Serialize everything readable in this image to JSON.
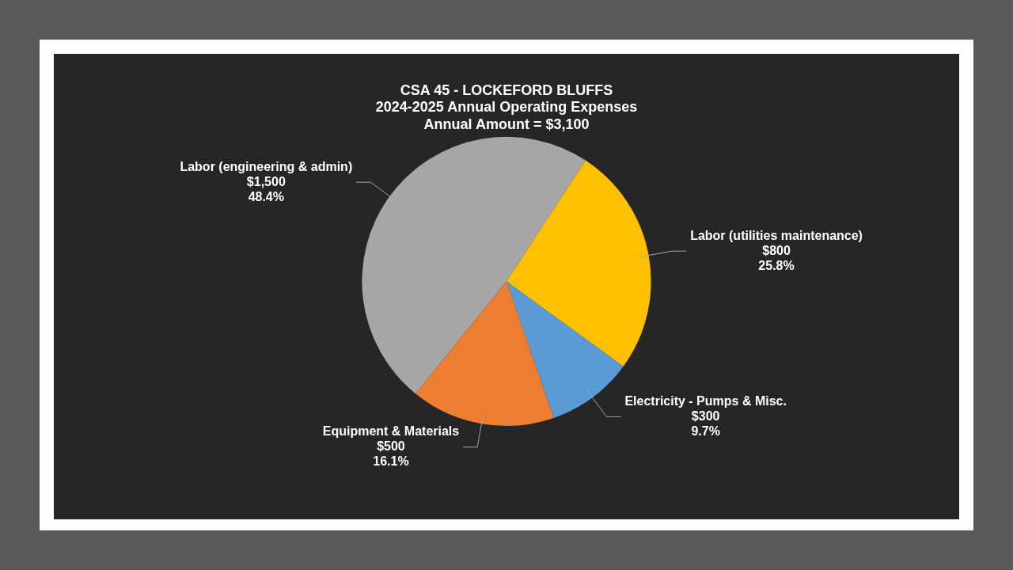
{
  "chart_data": {
    "type": "pie",
    "title": "CSA 45 - LOCKEFORD BLUFFS\n2024-2025 Annual Operating Expenses\nAnnual Amount = $3,100",
    "categories": [
      "Labor (engineering & admin)",
      "Labor (utilities maintenance)",
      "Electricity - Pumps & Misc.",
      "Equipment & Materials"
    ],
    "values": [
      1500,
      800,
      300,
      500
    ],
    "colors": [
      "#a6a6a6",
      "#ffc000",
      "#5b9bd5",
      "#ed7d31"
    ],
    "value_labels": [
      "$1,500\n48.4%",
      "$800\n25.8%",
      "$300\n9.7%",
      "$500\n16.1%"
    ]
  }
}
